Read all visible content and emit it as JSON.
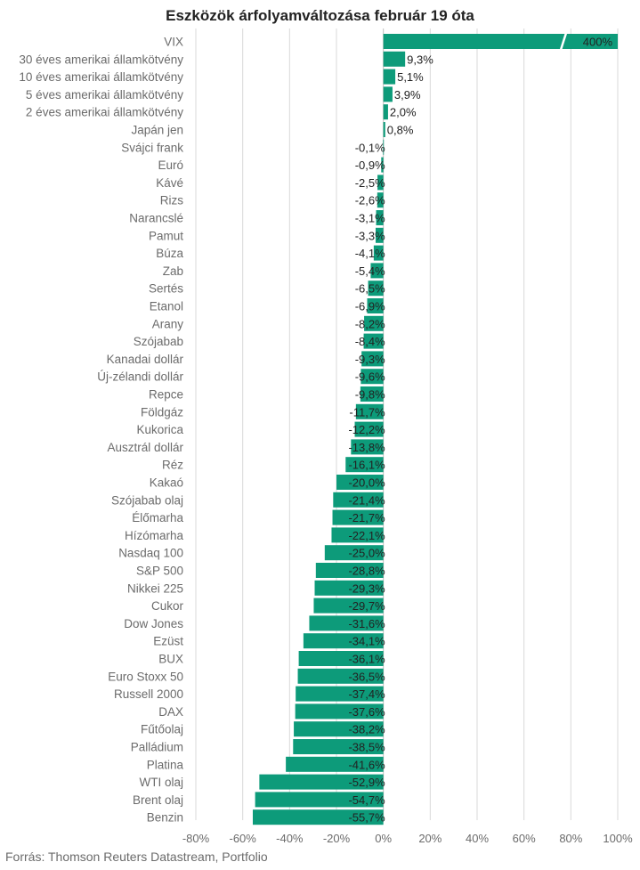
{
  "chart_data": {
    "type": "bar",
    "orientation": "horizontal",
    "title": "Eszközök árfolyamváltozása február 19 óta",
    "source": "Forrás: Thomson Reuters Datastream, Portfolio",
    "color": "#0d9b7a",
    "grid": true,
    "xlim": [
      -80,
      100
    ],
    "xticks": [
      -80,
      -60,
      -40,
      -20,
      0,
      20,
      40,
      60,
      80,
      100
    ],
    "xtick_labels": [
      "-80%",
      "-60%",
      "-40%",
      "-20%",
      "0%",
      "20%",
      "40%",
      "60%",
      "80%",
      "100%"
    ],
    "axis_break": true,
    "categories": [
      "VIX",
      "30 éves amerikai államkötvény",
      "10 éves amerikai államkötvény",
      "5 éves amerikai államkötvény",
      "2 éves amerikai államkötvény",
      "Japán jen",
      "Svájci frank",
      "Euró",
      "Kávé",
      "Rizs",
      "Narancslé",
      "Pamut",
      "Búza",
      "Zab",
      "Sertés",
      "Etanol",
      "Arany",
      "Szójabab",
      "Kanadai dollár",
      "Új-zélandi dollár",
      "Repce",
      "Földgáz",
      "Kukorica",
      "Ausztrál dollár",
      "Réz",
      "Kakaó",
      "Szójabab olaj",
      "Élőmarha",
      "Hízómarha",
      "Nasdaq 100",
      "S&P 500",
      "Nikkei 225",
      "Cukor",
      "Dow Jones",
      "Ezüst",
      "BUX",
      "Euro Stoxx 50",
      "Russell 2000",
      "DAX",
      "Fűtőolaj",
      "Palládium",
      "Platina",
      "WTI olaj",
      "Brent olaj",
      "Benzin"
    ],
    "values": [
      400,
      9.3,
      5.1,
      3.9,
      2.0,
      0.8,
      -0.1,
      -0.9,
      -2.5,
      -2.6,
      -3.1,
      -3.3,
      -4.1,
      -5.4,
      -6.5,
      -6.9,
      -8.2,
      -8.4,
      -9.3,
      -9.6,
      -9.8,
      -11.7,
      -12.2,
      -13.8,
      -16.1,
      -20.0,
      -21.4,
      -21.7,
      -22.1,
      -25.0,
      -28.8,
      -29.3,
      -29.7,
      -31.6,
      -34.1,
      -36.1,
      -36.5,
      -37.4,
      -37.6,
      -38.2,
      -38.5,
      -41.6,
      -52.9,
      -54.7,
      -55.7
    ],
    "labels": [
      "400%",
      "9,3%",
      "5,1%",
      "3,9%",
      "2,0%",
      "0,8%",
      "-0,1%",
      "-0,9%",
      "-2,5%",
      "-2,6%",
      "-3,1%",
      "-3,3%",
      "-4,1%",
      "-5,4%",
      "-6,5%",
      "-6,9%",
      "-8,2%",
      "-8,4%",
      "-9,3%",
      "-9,6%",
      "-9,8%",
      "-11,7%",
      "-12,2%",
      "-13,8%",
      "-16,1%",
      "-20,0%",
      "-21,4%",
      "-21,7%",
      "-22,1%",
      "-25,0%",
      "-28,8%",
      "-29,3%",
      "-29,7%",
      "-31,6%",
      "-34,1%",
      "-36,1%",
      "-36,5%",
      "-37,4%",
      "-37,6%",
      "-38,2%",
      "-38,5%",
      "-41,6%",
      "-52,9%",
      "-54,7%",
      "-55,7%"
    ]
  }
}
